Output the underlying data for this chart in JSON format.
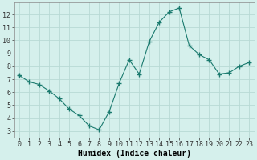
{
  "x": [
    0,
    1,
    2,
    3,
    4,
    5,
    6,
    7,
    8,
    9,
    10,
    11,
    12,
    13,
    14,
    15,
    16,
    17,
    18,
    19,
    20,
    21,
    22,
    23
  ],
  "y": [
    7.3,
    6.8,
    6.6,
    6.1,
    5.5,
    4.7,
    4.2,
    3.4,
    3.1,
    4.5,
    6.7,
    8.5,
    7.4,
    9.9,
    11.4,
    12.2,
    12.5,
    9.6,
    8.9,
    8.5,
    7.4,
    7.5,
    8.0,
    8.3
  ],
  "line_color": "#1a7a6e",
  "marker": "+",
  "marker_size": 4.0,
  "bg_color": "#d5f0ec",
  "grid_color": "#b8dad5",
  "xlabel": "Humidex (Indice chaleur)",
  "xlim": [
    -0.5,
    23.5
  ],
  "ylim": [
    2.5,
    12.9
  ],
  "yticks": [
    3,
    4,
    5,
    6,
    7,
    8,
    9,
    10,
    11,
    12
  ],
  "xticks": [
    0,
    1,
    2,
    3,
    4,
    5,
    6,
    7,
    8,
    9,
    10,
    11,
    12,
    13,
    14,
    15,
    16,
    17,
    18,
    19,
    20,
    21,
    22,
    23
  ],
  "label_fontsize": 7,
  "tick_fontsize": 6
}
